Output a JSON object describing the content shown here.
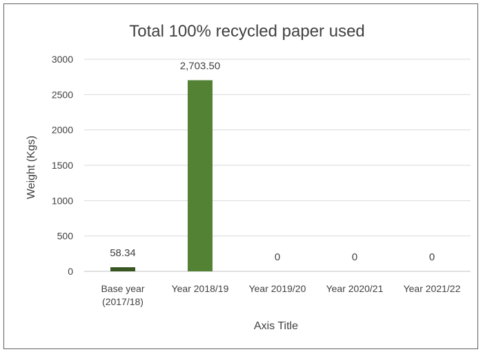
{
  "chart_data": {
    "type": "bar",
    "title": "Total 100% recycled paper used",
    "xlabel": "Axis Title",
    "ylabel": "Weight (Kgs)",
    "ylim": [
      0,
      3000
    ],
    "yticks": [
      "0",
      "500",
      "1000",
      "1500",
      "2000",
      "2500",
      "3000"
    ],
    "grid": true,
    "categories": [
      [
        "Base year",
        "(2017/18)"
      ],
      [
        "Year 2018/19"
      ],
      [
        "Year 2019/20"
      ],
      [
        "Year 2020/21"
      ],
      [
        "Year 2021/22"
      ]
    ],
    "values": [
      58.34,
      2703.5,
      0,
      0,
      0
    ],
    "data_labels": [
      "58.34",
      "2,703.50",
      "0",
      "0",
      "0"
    ],
    "bar_colors": [
      "#385723",
      "#548235",
      "#548235",
      "#548235",
      "#548235"
    ],
    "colors": {
      "gridline": "#d9d9d9",
      "axis": "#bfbfbf",
      "text": "#404040",
      "border": "#5f5f5f"
    }
  }
}
